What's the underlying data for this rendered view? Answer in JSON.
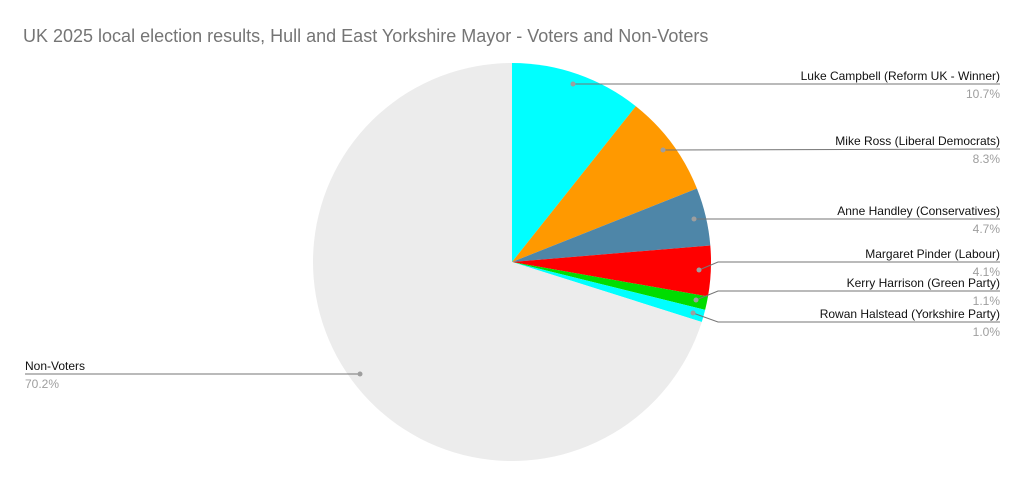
{
  "chart_data": {
    "type": "pie",
    "title": "UK 2025 local election results, Hull and East Yorkshire Mayor - Voters and Non-Voters",
    "start_angle_deg": 0,
    "direction": "clockwise",
    "legend_position": "none",
    "label_style": "callout-leader-lines",
    "background": "#FFFFFF",
    "title_color": "#757575",
    "label_text_color": "#111111",
    "pct_text_color": "#9E9E9E",
    "leader_line_color": "#757575",
    "slices": [
      {
        "label": "Luke Campbell (Reform UK - Winner)",
        "value": 10.7,
        "pct_label": "10.7%",
        "color": "#00FFFF"
      },
      {
        "label": "Mike Ross (Liberal Democrats)",
        "value": 8.3,
        "pct_label": "8.3%",
        "color": "#FF9900"
      },
      {
        "label": "Anne Handley (Conservatives)",
        "value": 4.7,
        "pct_label": "4.7%",
        "color": "#4E86A8"
      },
      {
        "label": "Margaret Pinder (Labour)",
        "value": 4.1,
        "pct_label": "4.1%",
        "color": "#FF0000"
      },
      {
        "label": "Kerry Harrison (Green Party)",
        "value": 1.1,
        "pct_label": "1.1%",
        "color": "#00DD00"
      },
      {
        "label": "Rowan Halstead (Yorkshire Party)",
        "value": 1.0,
        "pct_label": "1.0%",
        "color": "#00FFFF"
      },
      {
        "label": "Non-Voters",
        "value": 70.2,
        "pct_label": "70.2%",
        "color": "#ECECEC"
      }
    ]
  }
}
